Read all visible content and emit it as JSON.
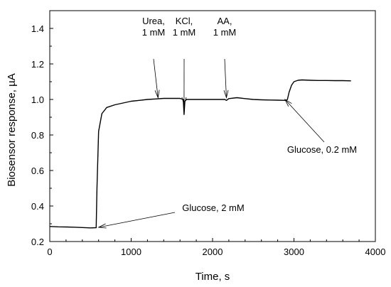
{
  "chart_data": {
    "type": "line",
    "title": "",
    "xlabel": "Time, s",
    "ylabel": "Biosensor response, µA",
    "xlim": [
      0,
      4000
    ],
    "ylim": [
      0.2,
      1.5
    ],
    "xticks": [
      0,
      1000,
      2000,
      3000,
      4000
    ],
    "xtick_labels": [
      "0",
      "1000",
      "2000",
      "3000",
      "4000"
    ],
    "yticks": [
      0.2,
      0.4,
      0.6,
      0.8,
      1.0,
      1.2,
      1.4
    ],
    "ytick_labels": [
      "0.2",
      "0.4",
      "0.6",
      "0.8",
      "1.0",
      "1.2",
      "1.4"
    ],
    "grid": false,
    "legend": "none",
    "series": [
      {
        "x": [
          0,
          100,
          200,
          300,
          400,
          500,
          570,
          580,
          600,
          640,
          700,
          800,
          900,
          1000,
          1100,
          1200,
          1300,
          1400,
          1500,
          1600,
          1640,
          1650,
          1660,
          1680,
          1700,
          1800,
          1900,
          2000,
          2100,
          2150,
          2170,
          2200,
          2300,
          2400,
          2500,
          2600,
          2700,
          2800,
          2900,
          2920,
          2940,
          2970,
          3000,
          3050,
          3100,
          3200,
          3300,
          3400,
          3500,
          3600,
          3700
        ],
        "y": [
          0.285,
          0.283,
          0.282,
          0.281,
          0.279,
          0.277,
          0.278,
          0.5,
          0.82,
          0.92,
          0.955,
          0.97,
          0.98,
          0.99,
          0.995,
          1.0,
          1.003,
          1.006,
          1.006,
          1.006,
          1.0,
          0.915,
          0.99,
          1.0,
          1.0,
          1.0,
          1.0,
          1.0,
          1.0,
          1.0,
          0.995,
          1.005,
          1.01,
          1.005,
          1.0,
          0.998,
          0.997,
          0.996,
          0.995,
          1.0,
          1.04,
          1.08,
          1.1,
          1.108,
          1.11,
          1.108,
          1.107,
          1.107,
          1.106,
          1.106,
          1.105
        ]
      }
    ],
    "annotations": [
      {
        "lines": [
          "Glucose, 2 mM"
        ],
        "point": [
          600,
          0.28
        ]
      },
      {
        "lines": [
          "Urea,",
          "1 mM"
        ],
        "point": [
          1330,
          1.01
        ]
      },
      {
        "lines": [
          "KCl,",
          "1 mM"
        ],
        "point": [
          1650,
          0.97
        ]
      },
      {
        "lines": [
          "AA,",
          "1 mM"
        ],
        "point": [
          2170,
          1.01
        ]
      },
      {
        "lines": [
          "Glucose, 0.2 mM"
        ],
        "point": [
          2890,
          1.0
        ]
      }
    ]
  }
}
